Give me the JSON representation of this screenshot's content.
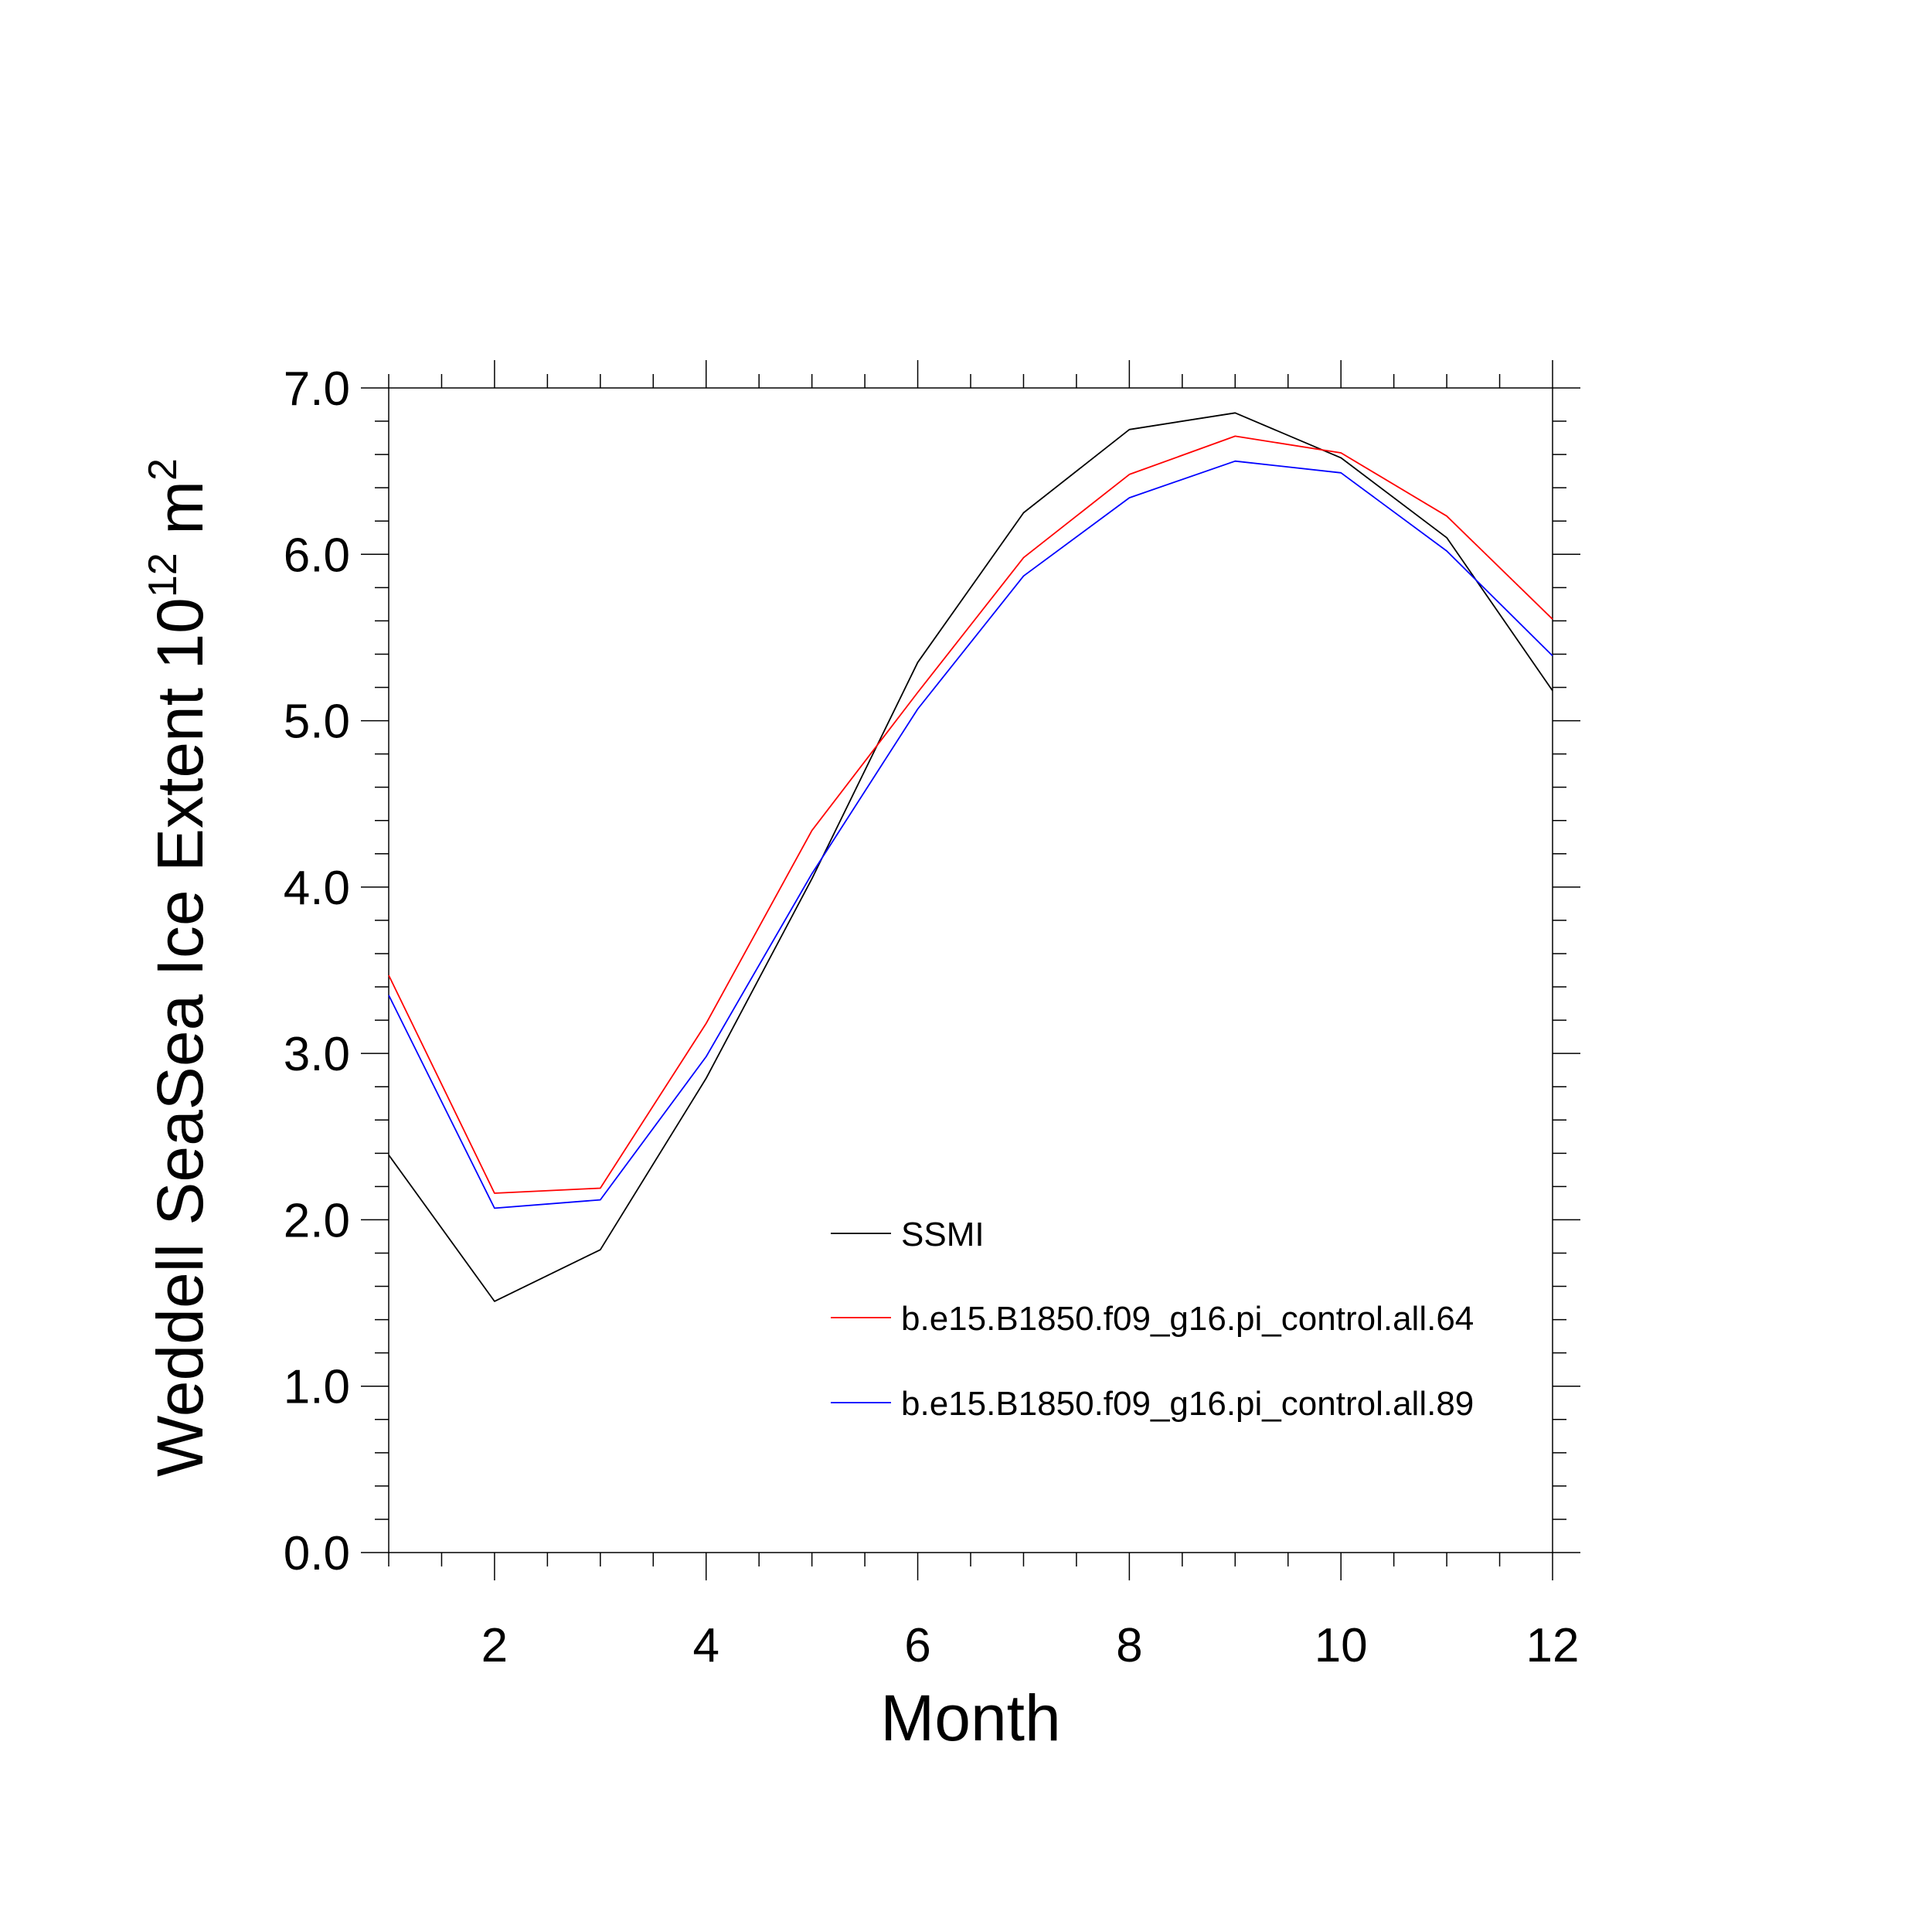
{
  "chart_data": {
    "type": "line",
    "xlabel": "Month",
    "ylabel_prefix": "Weddell SeaSea Ice Extent 10",
    "ylabel_exponent": "12",
    "ylabel_unit": " m",
    "ylabel_unit_exponent": "2",
    "xlim": [
      1,
      12
    ],
    "ylim": [
      0,
      7
    ],
    "x_ticks": [
      2,
      4,
      6,
      8,
      10,
      12
    ],
    "x_tick_labels": [
      "2",
      "4",
      "6",
      "8",
      "10",
      "12"
    ],
    "y_ticks": [
      0,
      1,
      2,
      3,
      4,
      5,
      6,
      7
    ],
    "y_tick_labels": [
      "0.0",
      "1.0",
      "2.0",
      "3.0",
      "4.0",
      "5.0",
      "6.0",
      "7.0"
    ],
    "x": [
      1,
      2,
      3,
      4,
      5,
      6,
      7,
      8,
      9,
      10,
      11,
      12
    ],
    "legend_position": "lower-right",
    "series": [
      {
        "name": "SSMI",
        "color": "#000000",
        "values": [
          2.39,
          1.51,
          1.82,
          2.85,
          4.05,
          5.35,
          6.25,
          6.75,
          6.85,
          6.58,
          6.1,
          5.18
        ]
      },
      {
        "name": "b.e15.B1850.f09_g16.pi_control.all.64",
        "color": "#ff0000",
        "values": [
          3.47,
          2.16,
          2.19,
          3.18,
          4.34,
          5.17,
          5.98,
          6.48,
          6.71,
          6.61,
          6.23,
          5.61
        ]
      },
      {
        "name": "b.e15.B1850.f09_g16.pi_control.all.89",
        "color": "#0000ff",
        "values": [
          3.35,
          2.07,
          2.12,
          2.98,
          4.08,
          5.07,
          5.87,
          6.34,
          6.56,
          6.49,
          6.02,
          5.39
        ]
      }
    ]
  }
}
